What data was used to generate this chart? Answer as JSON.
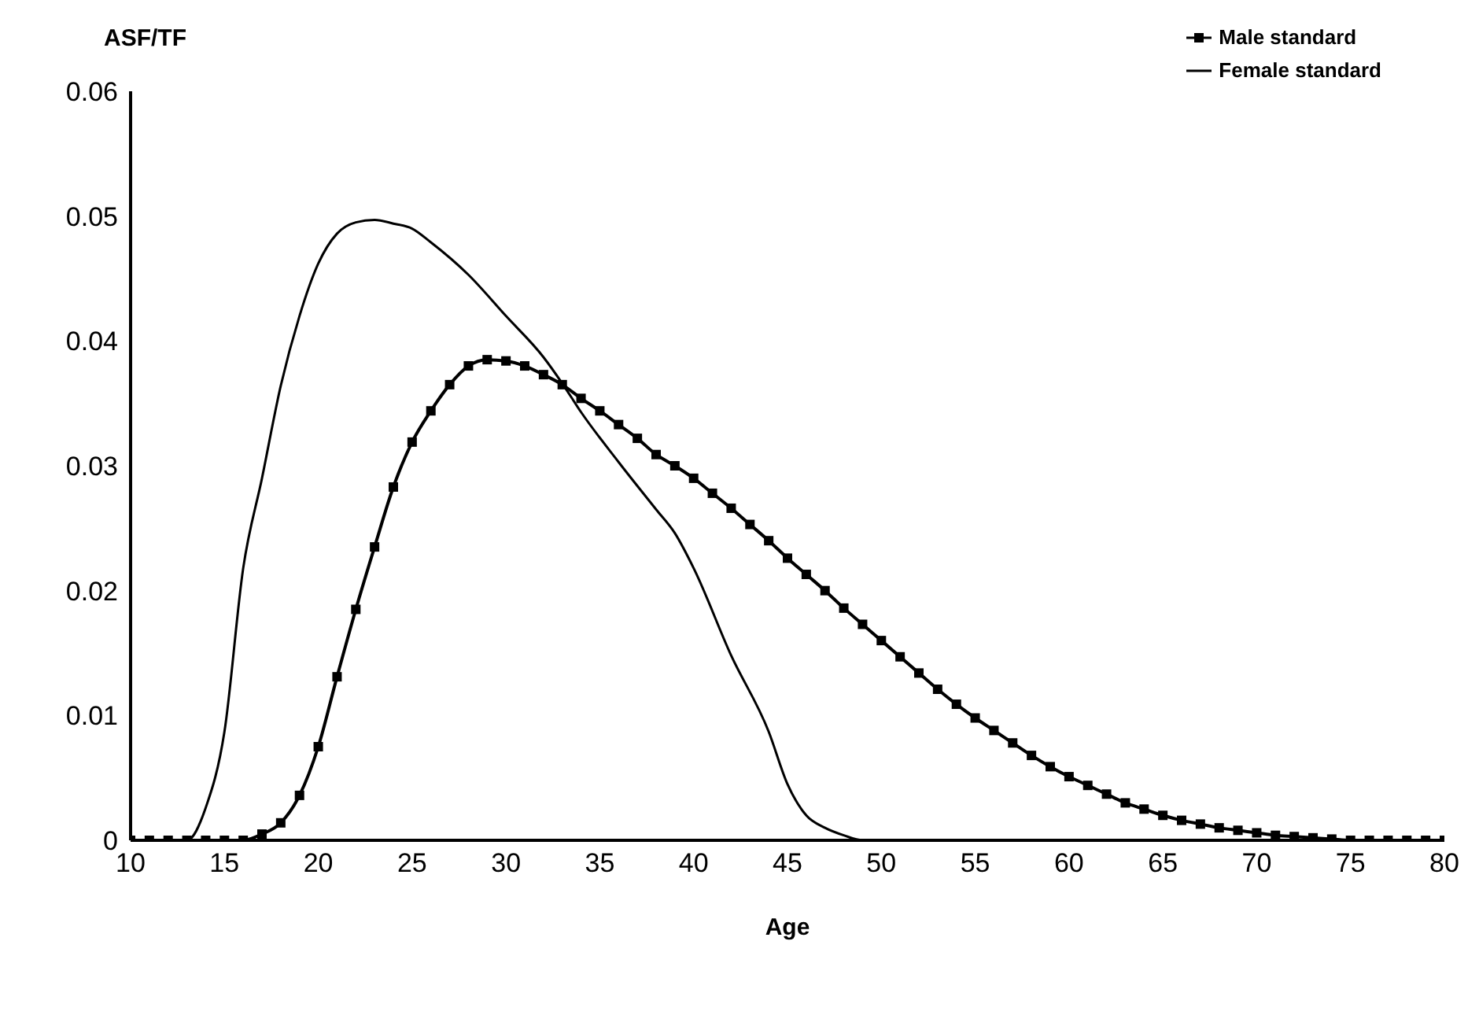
{
  "chart_data": {
    "type": "line",
    "xlabel": "Age",
    "ylabel": "ASF/TF",
    "xlim": [
      10,
      80
    ],
    "ylim": [
      0,
      0.06
    ],
    "xticks": [
      10,
      15,
      20,
      25,
      30,
      35,
      40,
      45,
      50,
      55,
      60,
      65,
      70,
      75,
      80
    ],
    "yticks": [
      0,
      0.01,
      0.02,
      0.03,
      0.04,
      0.05,
      0.06
    ],
    "grid": false,
    "legend": "top right",
    "line_style": "solid",
    "series": [
      {
        "name": "Male standard",
        "color": "#000000",
        "marker": "square",
        "x": [
          10,
          11,
          12,
          13,
          14,
          15,
          16,
          17,
          18,
          19,
          20,
          21,
          22,
          23,
          24,
          25,
          26,
          27,
          28,
          29,
          30,
          31,
          32,
          33,
          34,
          35,
          36,
          37,
          38,
          39,
          40,
          41,
          42,
          43,
          44,
          45,
          46,
          47,
          48,
          49,
          50,
          51,
          52,
          53,
          54,
          55,
          56,
          57,
          58,
          59,
          60,
          61,
          62,
          63,
          64,
          65,
          66,
          67,
          68,
          69,
          70,
          71,
          72,
          73,
          74,
          75,
          76,
          77,
          78,
          79,
          80
        ],
        "values": [
          0,
          0,
          0,
          0,
          0,
          0,
          0,
          0.0005,
          0.0014,
          0.0036,
          0.0075,
          0.0131,
          0.0185,
          0.0235,
          0.0283,
          0.0319,
          0.0344,
          0.0365,
          0.038,
          0.0385,
          0.0384,
          0.038,
          0.0373,
          0.0365,
          0.0354,
          0.0344,
          0.0333,
          0.0322,
          0.0309,
          0.03,
          0.029,
          0.0278,
          0.0266,
          0.0253,
          0.024,
          0.0226,
          0.0213,
          0.02,
          0.0186,
          0.0173,
          0.016,
          0.0147,
          0.0134,
          0.0121,
          0.0109,
          0.0098,
          0.0088,
          0.0078,
          0.0068,
          0.0059,
          0.0051,
          0.0044,
          0.0037,
          0.003,
          0.0025,
          0.002,
          0.0016,
          0.0013,
          0.001,
          0.0008,
          0.0006,
          0.0004,
          0.0003,
          0.0002,
          0.0001,
          0,
          0,
          0,
          0,
          0,
          0
        ]
      },
      {
        "name": "Female standard",
        "color": "#000000",
        "marker": "none",
        "x": [
          10,
          13,
          14,
          15,
          16,
          17,
          18,
          19,
          20,
          21,
          22,
          23,
          24,
          25,
          26,
          28,
          30,
          32,
          33,
          34,
          36,
          38,
          39,
          40,
          42,
          44,
          45,
          46,
          47,
          48,
          49,
          80
        ],
        "values": [
          0,
          0,
          0.0026,
          0.0087,
          0.0218,
          0.029,
          0.0364,
          0.042,
          0.0462,
          0.0486,
          0.0495,
          0.0497,
          0.0494,
          0.049,
          0.0479,
          0.0453,
          0.042,
          0.0387,
          0.0366,
          0.0343,
          0.0303,
          0.0265,
          0.0246,
          0.0218,
          0.0148,
          0.0087,
          0.0045,
          0.002,
          0.001,
          0.0004,
          0,
          0
        ]
      }
    ]
  }
}
